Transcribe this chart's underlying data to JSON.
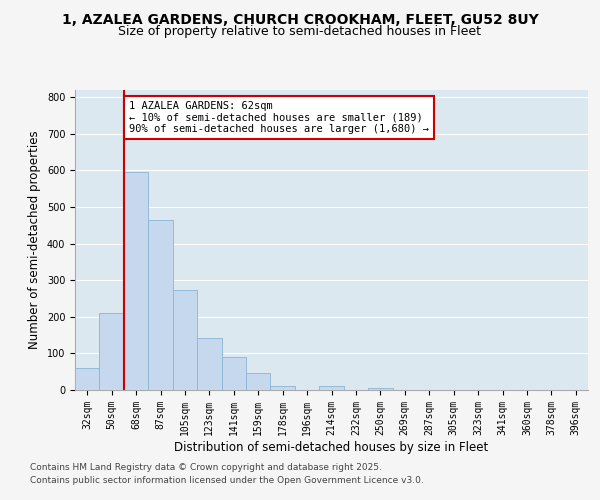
{
  "title_line1": "1, AZALEA GARDENS, CHURCH CROOKHAM, FLEET, GU52 8UY",
  "title_line2": "Size of property relative to semi-detached houses in Fleet",
  "xlabel": "Distribution of semi-detached houses by size in Fleet",
  "ylabel": "Number of semi-detached properties",
  "categories": [
    "32sqm",
    "50sqm",
    "68sqm",
    "87sqm",
    "105sqm",
    "123sqm",
    "141sqm",
    "159sqm",
    "178sqm",
    "196sqm",
    "214sqm",
    "232sqm",
    "250sqm",
    "269sqm",
    "287sqm",
    "305sqm",
    "323sqm",
    "341sqm",
    "360sqm",
    "378sqm",
    "396sqm"
  ],
  "values": [
    60,
    210,
    595,
    465,
    272,
    143,
    90,
    47,
    10,
    0,
    10,
    0,
    5,
    0,
    0,
    0,
    0,
    0,
    0,
    0,
    0
  ],
  "bar_color": "#c5d8ed",
  "bar_edge_color": "#8ab4d4",
  "vline_color": "#cc0000",
  "vline_x_index": 1.5,
  "annotation_title": "1 AZALEA GARDENS: 62sqm",
  "annotation_line2": "← 10% of semi-detached houses are smaller (189)",
  "annotation_line3": "90% of semi-detached houses are larger (1,680) →",
  "annotation_box_edge_color": "#cc0000",
  "ylim": [
    0,
    820
  ],
  "yticks": [
    0,
    100,
    200,
    300,
    400,
    500,
    600,
    700,
    800
  ],
  "plot_bg_color": "#dce8f0",
  "grid_color": "#ffffff",
  "fig_bg_color": "#f5f5f5",
  "footer_line1": "Contains HM Land Registry data © Crown copyright and database right 2025.",
  "footer_line2": "Contains public sector information licensed under the Open Government Licence v3.0.",
  "title_fontsize": 10,
  "subtitle_fontsize": 9,
  "axis_label_fontsize": 8.5,
  "tick_fontsize": 7,
  "annotation_fontsize": 7.5,
  "footer_fontsize": 6.5
}
